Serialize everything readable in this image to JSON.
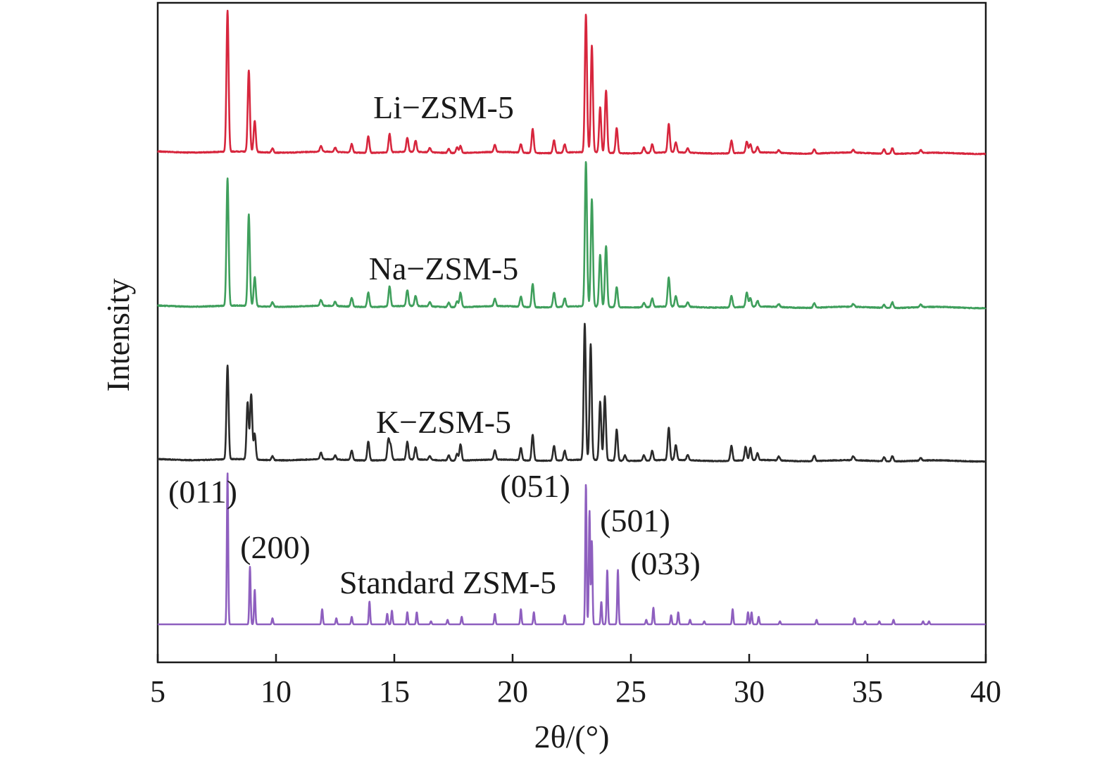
{
  "chart_data": {
    "type": "line",
    "xlabel": "2θ/(°)",
    "ylabel": "Intensity",
    "xlim": [
      5,
      40
    ],
    "x_ticks": [
      "5",
      "10",
      "15",
      "20",
      "25",
      "30",
      "35",
      "40"
    ],
    "y_ticks_shown": false,
    "grid": false,
    "legend": "none (series labelled directly on the plot)",
    "series": [
      {
        "name": "Li−ZSM-5",
        "color": "#d7263d",
        "baseline": 0.0,
        "peaks": [
          [
            7.95,
            1.0
          ],
          [
            8.85,
            0.58
          ],
          [
            9.1,
            0.22
          ],
          [
            9.85,
            0.03
          ],
          [
            11.9,
            0.04
          ],
          [
            12.5,
            0.03
          ],
          [
            13.2,
            0.06
          ],
          [
            13.9,
            0.12
          ],
          [
            14.8,
            0.13
          ],
          [
            15.55,
            0.1
          ],
          [
            15.9,
            0.08
          ],
          [
            16.5,
            0.03
          ],
          [
            17.3,
            0.03
          ],
          [
            17.65,
            0.04
          ],
          [
            17.8,
            0.05
          ],
          [
            19.25,
            0.05
          ],
          [
            20.35,
            0.06
          ],
          [
            20.85,
            0.17
          ],
          [
            21.75,
            0.09
          ],
          [
            22.2,
            0.06
          ],
          [
            23.1,
            0.98
          ],
          [
            23.35,
            0.76
          ],
          [
            23.7,
            0.32
          ],
          [
            23.95,
            0.44
          ],
          [
            24.4,
            0.18
          ],
          [
            25.55,
            0.04
          ],
          [
            25.9,
            0.06
          ],
          [
            26.6,
            0.2
          ],
          [
            26.9,
            0.07
          ],
          [
            27.4,
            0.03
          ],
          [
            29.25,
            0.09
          ],
          [
            29.9,
            0.08
          ],
          [
            30.05,
            0.06
          ],
          [
            30.35,
            0.04
          ],
          [
            31.25,
            0.02
          ],
          [
            32.75,
            0.03
          ],
          [
            34.4,
            0.02
          ],
          [
            35.7,
            0.03
          ],
          [
            36.05,
            0.04
          ],
          [
            37.25,
            0.02
          ]
        ]
      },
      {
        "name": "Na−ZSM-5",
        "color": "#3f9f5c",
        "baseline": 0.0,
        "peaks": [
          [
            7.95,
            0.88
          ],
          [
            8.85,
            0.63
          ],
          [
            9.1,
            0.2
          ],
          [
            9.85,
            0.03
          ],
          [
            11.9,
            0.04
          ],
          [
            12.5,
            0.03
          ],
          [
            13.2,
            0.06
          ],
          [
            13.9,
            0.1
          ],
          [
            14.8,
            0.14
          ],
          [
            15.55,
            0.11
          ],
          [
            15.9,
            0.07
          ],
          [
            16.5,
            0.03
          ],
          [
            17.3,
            0.03
          ],
          [
            17.65,
            0.04
          ],
          [
            17.8,
            0.1
          ],
          [
            19.25,
            0.05
          ],
          [
            20.35,
            0.07
          ],
          [
            20.85,
            0.16
          ],
          [
            21.75,
            0.1
          ],
          [
            22.2,
            0.06
          ],
          [
            23.1,
            1.0
          ],
          [
            23.35,
            0.74
          ],
          [
            23.7,
            0.36
          ],
          [
            23.95,
            0.42
          ],
          [
            24.4,
            0.14
          ],
          [
            25.55,
            0.03
          ],
          [
            25.9,
            0.06
          ],
          [
            26.6,
            0.2
          ],
          [
            26.9,
            0.07
          ],
          [
            27.4,
            0.03
          ],
          [
            29.25,
            0.08
          ],
          [
            29.9,
            0.1
          ],
          [
            30.05,
            0.06
          ],
          [
            30.35,
            0.04
          ],
          [
            31.25,
            0.02
          ],
          [
            32.75,
            0.03
          ],
          [
            34.4,
            0.02
          ],
          [
            35.7,
            0.02
          ],
          [
            36.05,
            0.04
          ],
          [
            37.25,
            0.02
          ]
        ]
      },
      {
        "name": "K−ZSM-5",
        "color": "#2b2b2b",
        "baseline": 0.0,
        "peaks": [
          [
            7.95,
            0.69
          ],
          [
            8.8,
            0.42
          ],
          [
            8.95,
            0.48
          ],
          [
            9.1,
            0.19
          ],
          [
            9.85,
            0.03
          ],
          [
            11.9,
            0.05
          ],
          [
            12.5,
            0.03
          ],
          [
            13.2,
            0.07
          ],
          [
            13.9,
            0.14
          ],
          [
            14.75,
            0.15
          ],
          [
            14.85,
            0.1
          ],
          [
            15.55,
            0.13
          ],
          [
            15.9,
            0.09
          ],
          [
            16.5,
            0.03
          ],
          [
            17.3,
            0.04
          ],
          [
            17.65,
            0.05
          ],
          [
            17.8,
            0.12
          ],
          [
            19.25,
            0.07
          ],
          [
            20.35,
            0.09
          ],
          [
            20.85,
            0.19
          ],
          [
            21.75,
            0.11
          ],
          [
            22.2,
            0.07
          ],
          [
            23.05,
            1.0
          ],
          [
            23.3,
            0.85
          ],
          [
            23.7,
            0.43
          ],
          [
            23.9,
            0.47
          ],
          [
            24.4,
            0.23
          ],
          [
            24.75,
            0.04
          ],
          [
            25.55,
            0.04
          ],
          [
            25.9,
            0.07
          ],
          [
            26.6,
            0.24
          ],
          [
            26.9,
            0.11
          ],
          [
            27.4,
            0.04
          ],
          [
            29.25,
            0.11
          ],
          [
            29.85,
            0.1
          ],
          [
            30.05,
            0.09
          ],
          [
            30.35,
            0.05
          ],
          [
            31.25,
            0.03
          ],
          [
            32.75,
            0.04
          ],
          [
            34.4,
            0.03
          ],
          [
            35.7,
            0.03
          ],
          [
            36.05,
            0.04
          ],
          [
            37.25,
            0.02
          ]
        ]
      },
      {
        "name": "Standard ZSM-5",
        "color": "#8e5fbf",
        "baseline": 0.0,
        "peaks": [
          [
            7.95,
            1.0
          ],
          [
            8.9,
            0.38
          ],
          [
            9.1,
            0.23
          ],
          [
            9.85,
            0.04
          ],
          [
            11.95,
            0.1
          ],
          [
            12.55,
            0.04
          ],
          [
            13.2,
            0.05
          ],
          [
            13.95,
            0.15
          ],
          [
            14.7,
            0.07
          ],
          [
            14.9,
            0.09
          ],
          [
            15.55,
            0.08
          ],
          [
            15.95,
            0.08
          ],
          [
            16.55,
            0.02
          ],
          [
            17.25,
            0.03
          ],
          [
            17.85,
            0.05
          ],
          [
            19.25,
            0.07
          ],
          [
            20.35,
            0.1
          ],
          [
            20.9,
            0.08
          ],
          [
            22.2,
            0.06
          ],
          [
            23.1,
            0.93
          ],
          [
            23.25,
            0.75
          ],
          [
            23.35,
            0.55
          ],
          [
            23.75,
            0.15
          ],
          [
            24.0,
            0.36
          ],
          [
            24.45,
            0.36
          ],
          [
            25.65,
            0.03
          ],
          [
            25.95,
            0.11
          ],
          [
            26.7,
            0.06
          ],
          [
            27.0,
            0.08
          ],
          [
            27.5,
            0.03
          ],
          [
            28.1,
            0.02
          ],
          [
            29.3,
            0.1
          ],
          [
            29.95,
            0.08
          ],
          [
            30.1,
            0.08
          ],
          [
            30.4,
            0.05
          ],
          [
            31.3,
            0.02
          ],
          [
            32.85,
            0.03
          ],
          [
            34.45,
            0.04
          ],
          [
            34.9,
            0.02
          ],
          [
            35.5,
            0.02
          ],
          [
            36.1,
            0.03
          ],
          [
            37.35,
            0.02
          ],
          [
            37.6,
            0.02
          ]
        ]
      }
    ],
    "annotations": [
      "(011)",
      "(200)",
      "(051)",
      "(501)",
      "(033)"
    ]
  }
}
